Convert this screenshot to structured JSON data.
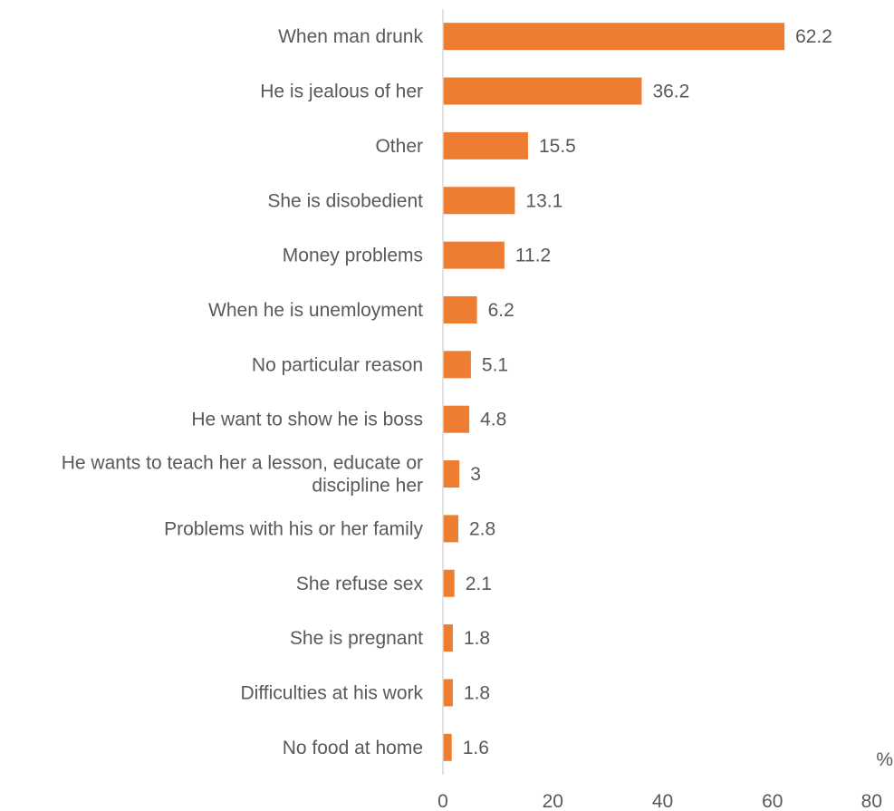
{
  "chart_data": {
    "type": "bar",
    "orientation": "horizontal",
    "categories": [
      [
        "When man drunk"
      ],
      [
        "He is jealous of her"
      ],
      [
        "Other"
      ],
      [
        "She is disobedient"
      ],
      [
        "Money problems"
      ],
      [
        "When he is unemloyment"
      ],
      [
        "No particular reason"
      ],
      [
        "He want to show he is boss"
      ],
      [
        "He wants to teach her a lesson, educate or",
        "discipline her"
      ],
      [
        "Problems with his or her family"
      ],
      [
        "She refuse sex"
      ],
      [
        "She is pregnant"
      ],
      [
        "Difficulties at his work"
      ],
      [
        "No food at home"
      ]
    ],
    "values": [
      62.2,
      36.2,
      15.5,
      13.1,
      11.2,
      6.2,
      5.1,
      4.8,
      3,
      2.8,
      2.1,
      1.8,
      1.8,
      1.6
    ],
    "value_labels": [
      "62.2",
      "36.2",
      "15.5",
      "13.1",
      "11.2",
      "6.2",
      "5.1",
      "4.8",
      "3",
      "2.8",
      "2.1",
      "1.8",
      "1.8",
      "1.6"
    ],
    "xlim": [
      0,
      80
    ],
    "x_ticks": [
      "0",
      "20",
      "40",
      "60",
      "80"
    ],
    "unit_label": "%",
    "bar_color": "#ED7D31",
    "grid": false
  }
}
